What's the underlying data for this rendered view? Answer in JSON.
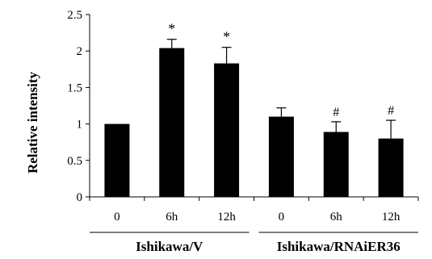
{
  "chart_data": {
    "type": "bar",
    "ylabel": "Relative intensity",
    "ylim": [
      0,
      2.5
    ],
    "yticks": [
      0,
      0.5,
      1,
      1.5,
      2,
      2.5
    ],
    "ytick_labels": [
      "0",
      "0.5",
      "1",
      "1.5",
      "2",
      "2.5"
    ],
    "grid": false,
    "legend": "none",
    "categories": [
      "0",
      "6h",
      "12h",
      "0",
      "6h",
      "12h"
    ],
    "values": [
      1.0,
      2.04,
      1.83,
      1.1,
      0.89,
      0.8
    ],
    "errors": [
      0,
      0.12,
      0.22,
      0.12,
      0.14,
      0.25
    ],
    "annotations": [
      "",
      "*",
      "*",
      "",
      "#",
      "#"
    ],
    "groups": [
      {
        "label": "Ishikawa/V",
        "start": 0,
        "end": 2
      },
      {
        "label": "Ishikawa/RNAiER36",
        "start": 3,
        "end": 5
      }
    ],
    "colors": {
      "bar": "#000000",
      "axis": "#000000",
      "background": "#ffffff"
    }
  }
}
